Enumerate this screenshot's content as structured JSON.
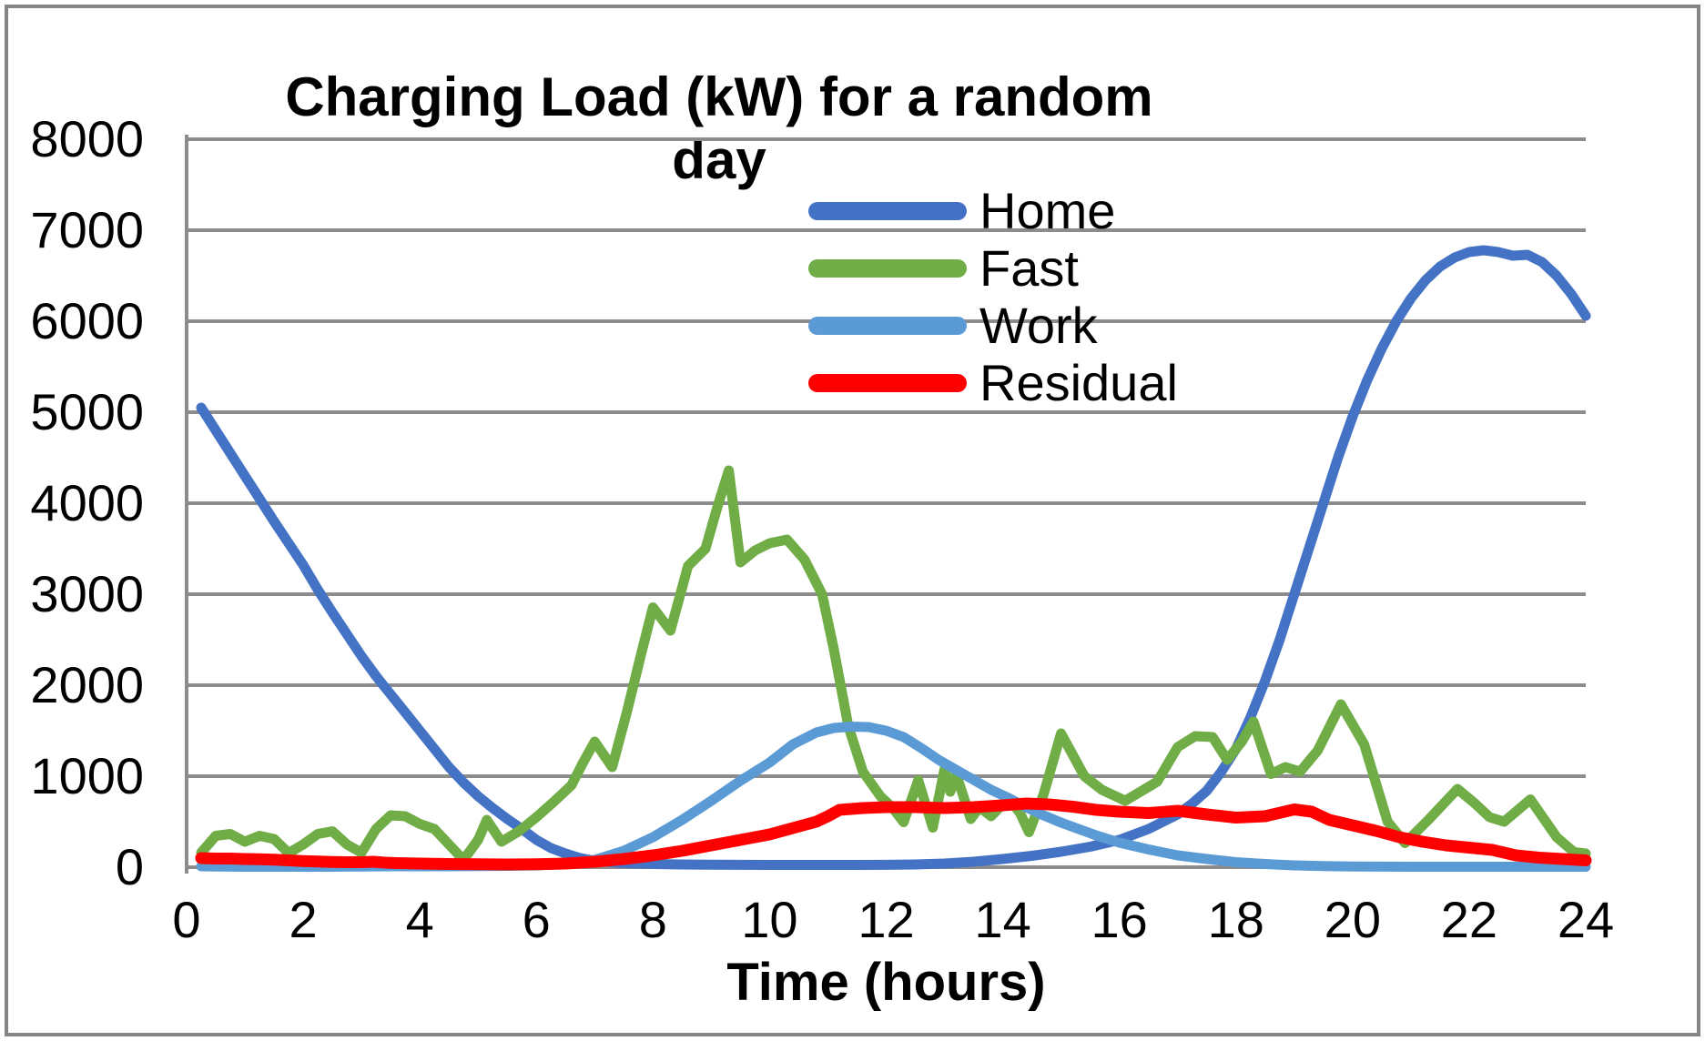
{
  "window": {
    "background": "#FFFFFF",
    "border_color": "#848484",
    "gridline_color": "#8C8C8C"
  },
  "chart_data": {
    "type": "line",
    "title": "Charging Load (kW) for a random day",
    "xlabel": "Time (hours)",
    "ylabel": "",
    "xlim": [
      0,
      24
    ],
    "ylim": [
      0,
      8000
    ],
    "x_ticks": [
      0,
      2,
      4,
      6,
      8,
      10,
      12,
      14,
      16,
      18,
      20,
      22,
      24
    ],
    "y_ticks": [
      0,
      1000,
      2000,
      3000,
      4000,
      5000,
      6000,
      7000,
      8000
    ],
    "gridlines": "horizontal",
    "legend_position": "upper-middle",
    "series": [
      {
        "name": "Home",
        "color": "#4472C4",
        "stroke_width": 11,
        "points": [
          [
            0.25,
            5050
          ],
          [
            0.5,
            4800
          ],
          [
            0.75,
            4550
          ],
          [
            1,
            4300
          ],
          [
            1.25,
            4050
          ],
          [
            1.5,
            3800
          ],
          [
            1.75,
            3560
          ],
          [
            2,
            3320
          ],
          [
            2.25,
            3050
          ],
          [
            2.5,
            2800
          ],
          [
            2.75,
            2560
          ],
          [
            3,
            2320
          ],
          [
            3.25,
            2100
          ],
          [
            3.5,
            1900
          ],
          [
            3.75,
            1700
          ],
          [
            4,
            1500
          ],
          [
            4.25,
            1300
          ],
          [
            4.5,
            1100
          ],
          [
            4.75,
            930
          ],
          [
            5,
            780
          ],
          [
            5.25,
            650
          ],
          [
            5.5,
            530
          ],
          [
            5.75,
            420
          ],
          [
            6,
            300
          ],
          [
            6.25,
            210
          ],
          [
            6.5,
            150
          ],
          [
            6.75,
            100
          ],
          [
            7,
            70
          ],
          [
            7.5,
            45
          ],
          [
            8,
            35
          ],
          [
            8.5,
            30
          ],
          [
            9,
            28
          ],
          [
            9.5,
            26
          ],
          [
            10,
            25
          ],
          [
            10.5,
            25
          ],
          [
            11,
            25
          ],
          [
            11.5,
            25
          ],
          [
            12,
            26
          ],
          [
            12.5,
            30
          ],
          [
            13,
            40
          ],
          [
            13.5,
            60
          ],
          [
            14,
            90
          ],
          [
            14.5,
            125
          ],
          [
            15,
            170
          ],
          [
            15.5,
            225
          ],
          [
            16,
            300
          ],
          [
            16.5,
            420
          ],
          [
            17,
            580
          ],
          [
            17.25,
            700
          ],
          [
            17.5,
            840
          ],
          [
            17.75,
            1050
          ],
          [
            18,
            1300
          ],
          [
            18.25,
            1650
          ],
          [
            18.5,
            2050
          ],
          [
            18.75,
            2500
          ],
          [
            19,
            3000
          ],
          [
            19.25,
            3500
          ],
          [
            19.5,
            4000
          ],
          [
            19.75,
            4500
          ],
          [
            20,
            4950
          ],
          [
            20.25,
            5350
          ],
          [
            20.5,
            5700
          ],
          [
            20.75,
            6000
          ],
          [
            21,
            6250
          ],
          [
            21.25,
            6450
          ],
          [
            21.5,
            6600
          ],
          [
            21.75,
            6700
          ],
          [
            22,
            6760
          ],
          [
            22.25,
            6780
          ],
          [
            22.5,
            6760
          ],
          [
            22.75,
            6720
          ],
          [
            23,
            6730
          ],
          [
            23.25,
            6650
          ],
          [
            23.5,
            6500
          ],
          [
            23.75,
            6300
          ],
          [
            24,
            6060
          ]
        ]
      },
      {
        "name": "Fast",
        "color": "#70AD47",
        "stroke_width": 11,
        "points": [
          [
            0.25,
            160
          ],
          [
            0.5,
            345
          ],
          [
            0.75,
            365
          ],
          [
            1,
            280
          ],
          [
            1.25,
            345
          ],
          [
            1.5,
            310
          ],
          [
            1.75,
            155
          ],
          [
            2,
            250
          ],
          [
            2.25,
            365
          ],
          [
            2.5,
            395
          ],
          [
            2.75,
            250
          ],
          [
            3,
            160
          ],
          [
            3.25,
            420
          ],
          [
            3.5,
            570
          ],
          [
            3.75,
            560
          ],
          [
            4,
            475
          ],
          [
            4.25,
            420
          ],
          [
            4.5,
            250
          ],
          [
            4.75,
            80
          ],
          [
            5,
            300
          ],
          [
            5.15,
            520
          ],
          [
            5.4,
            280
          ],
          [
            5.7,
            395
          ],
          [
            6,
            550
          ],
          [
            6.3,
            720
          ],
          [
            6.6,
            900
          ],
          [
            6.8,
            1150
          ],
          [
            7,
            1380
          ],
          [
            7.3,
            1100
          ],
          [
            7.55,
            1700
          ],
          [
            7.8,
            2350
          ],
          [
            8,
            2855
          ],
          [
            8.3,
            2600
          ],
          [
            8.6,
            3310
          ],
          [
            8.9,
            3500
          ],
          [
            9.1,
            3950
          ],
          [
            9.3,
            4360
          ],
          [
            9.5,
            3350
          ],
          [
            9.75,
            3480
          ],
          [
            10,
            3560
          ],
          [
            10.3,
            3600
          ],
          [
            10.6,
            3380
          ],
          [
            10.9,
            3000
          ],
          [
            11.1,
            2400
          ],
          [
            11.35,
            1550
          ],
          [
            11.6,
            1050
          ],
          [
            11.9,
            780
          ],
          [
            12.1,
            660
          ],
          [
            12.3,
            495
          ],
          [
            12.55,
            955
          ],
          [
            12.8,
            435
          ],
          [
            13,
            1075
          ],
          [
            13.1,
            830
          ],
          [
            13.2,
            1025
          ],
          [
            13.45,
            530
          ],
          [
            13.6,
            660
          ],
          [
            13.8,
            560
          ],
          [
            14.1,
            760
          ],
          [
            14.3,
            590
          ],
          [
            14.45,
            385
          ],
          [
            14.7,
            800
          ],
          [
            15,
            1470
          ],
          [
            15.4,
            1000
          ],
          [
            15.7,
            850
          ],
          [
            16,
            760
          ],
          [
            16.1,
            730
          ],
          [
            16.65,
            940
          ],
          [
            17,
            1320
          ],
          [
            17.3,
            1440
          ],
          [
            17.6,
            1430
          ],
          [
            17.85,
            1180
          ],
          [
            18.1,
            1380
          ],
          [
            18.3,
            1600
          ],
          [
            18.6,
            1025
          ],
          [
            18.85,
            1100
          ],
          [
            19.1,
            1050
          ],
          [
            19.4,
            1280
          ],
          [
            19.8,
            1790
          ],
          [
            20.2,
            1350
          ],
          [
            20.6,
            500
          ],
          [
            20.9,
            265
          ],
          [
            21.3,
            520
          ],
          [
            21.8,
            860
          ],
          [
            22.1,
            700
          ],
          [
            22.35,
            550
          ],
          [
            22.6,
            500
          ],
          [
            23.05,
            745
          ],
          [
            23.5,
            330
          ],
          [
            23.8,
            165
          ],
          [
            24,
            150
          ]
        ]
      },
      {
        "name": "Work",
        "color": "#5B9BD5",
        "stroke_width": 11,
        "points": [
          [
            0.25,
            10
          ],
          [
            0.5,
            8
          ],
          [
            1,
            5
          ],
          [
            1.5,
            5
          ],
          [
            2,
            5
          ],
          [
            2.5,
            5
          ],
          [
            3,
            8
          ],
          [
            3.5,
            10
          ],
          [
            4,
            10
          ],
          [
            4.5,
            10
          ],
          [
            5,
            12
          ],
          [
            5.5,
            15
          ],
          [
            6,
            20
          ],
          [
            6.5,
            35
          ],
          [
            7,
            80
          ],
          [
            7.5,
            180
          ],
          [
            8,
            330
          ],
          [
            8.5,
            520
          ],
          [
            9,
            730
          ],
          [
            9.5,
            950
          ],
          [
            10,
            1150
          ],
          [
            10.4,
            1350
          ],
          [
            10.8,
            1480
          ],
          [
            11.1,
            1530
          ],
          [
            11.4,
            1545
          ],
          [
            11.7,
            1540
          ],
          [
            12,
            1500
          ],
          [
            12.3,
            1430
          ],
          [
            12.6,
            1310
          ],
          [
            12.9,
            1180
          ],
          [
            13.2,
            1070
          ],
          [
            13.5,
            960
          ],
          [
            13.8,
            850
          ],
          [
            14.1,
            760
          ],
          [
            14.4,
            660
          ],
          [
            14.7,
            570
          ],
          [
            15,
            490
          ],
          [
            15.3,
            420
          ],
          [
            15.6,
            350
          ],
          [
            16,
            270
          ],
          [
            16.5,
            195
          ],
          [
            17,
            130
          ],
          [
            17.5,
            90
          ],
          [
            18,
            55
          ],
          [
            18.5,
            35
          ],
          [
            19,
            20
          ],
          [
            19.5,
            12
          ],
          [
            20,
            8
          ],
          [
            21,
            5
          ],
          [
            22,
            5
          ],
          [
            23,
            5
          ],
          [
            24,
            5
          ]
        ]
      },
      {
        "name": "Residual",
        "color": "#FF0000",
        "stroke_width": 13,
        "points": [
          [
            0.25,
            100
          ],
          [
            0.5,
            95
          ],
          [
            0.75,
            95
          ],
          [
            1,
            90
          ],
          [
            1.25,
            88
          ],
          [
            1.5,
            82
          ],
          [
            1.75,
            75
          ],
          [
            2,
            68
          ],
          [
            2.25,
            62
          ],
          [
            2.5,
            58
          ],
          [
            2.75,
            55
          ],
          [
            3,
            55
          ],
          [
            3.2,
            60
          ],
          [
            3.4,
            50
          ],
          [
            3.6,
            45
          ],
          [
            4,
            40
          ],
          [
            4.5,
            35
          ],
          [
            5,
            32
          ],
          [
            5.5,
            30
          ],
          [
            6,
            32
          ],
          [
            6.5,
            40
          ],
          [
            7,
            60
          ],
          [
            7.5,
            90
          ],
          [
            8,
            130
          ],
          [
            8.5,
            180
          ],
          [
            9,
            240
          ],
          [
            9.5,
            300
          ],
          [
            10,
            360
          ],
          [
            10.4,
            430
          ],
          [
            10.8,
            500
          ],
          [
            11,
            560
          ],
          [
            11.2,
            630
          ],
          [
            11.6,
            650
          ],
          [
            12,
            660
          ],
          [
            12.5,
            660
          ],
          [
            13,
            650
          ],
          [
            13.5,
            660
          ],
          [
            14,
            680
          ],
          [
            14.4,
            700
          ],
          [
            14.8,
            690
          ],
          [
            15.2,
            665
          ],
          [
            15.6,
            630
          ],
          [
            16,
            610
          ],
          [
            16.5,
            595
          ],
          [
            17,
            620
          ],
          [
            17.5,
            580
          ],
          [
            18,
            545
          ],
          [
            18.5,
            560
          ],
          [
            19,
            635
          ],
          [
            19.3,
            610
          ],
          [
            19.6,
            520
          ],
          [
            20,
            460
          ],
          [
            20.4,
            400
          ],
          [
            20.8,
            330
          ],
          [
            21.2,
            280
          ],
          [
            21.6,
            240
          ],
          [
            22,
            215
          ],
          [
            22.4,
            190
          ],
          [
            22.8,
            130
          ],
          [
            23.2,
            105
          ],
          [
            23.6,
            90
          ],
          [
            24,
            75
          ]
        ]
      }
    ]
  }
}
